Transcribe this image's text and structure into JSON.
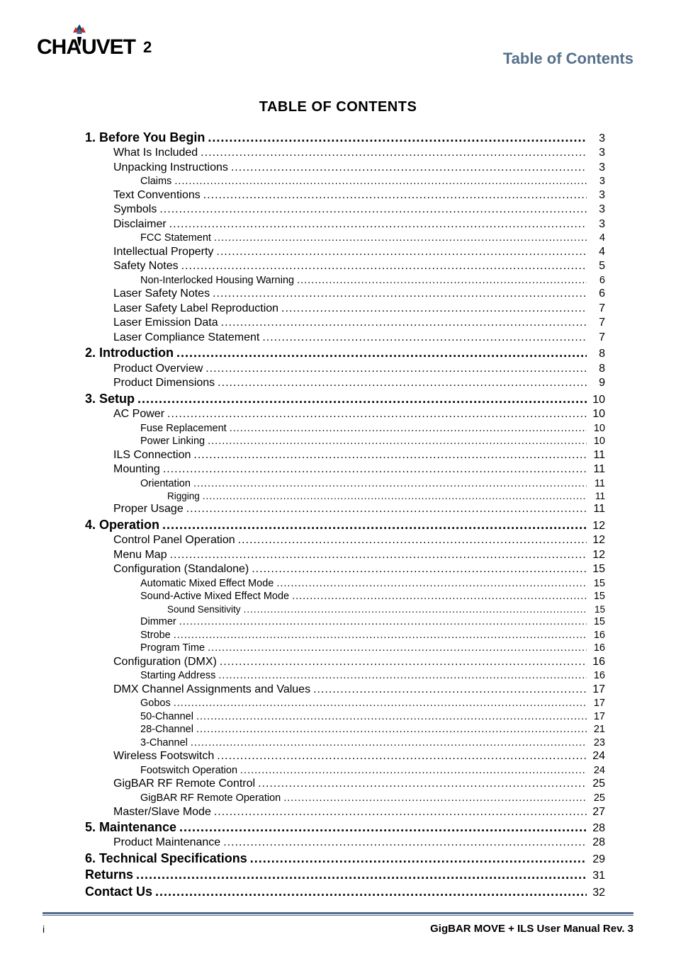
{
  "brand": "CHAUVET",
  "header_right": "Table of Contents",
  "main_title": "TABLE OF CONTENTS",
  "footer": {
    "left": "i",
    "right": "GigBAR MOVE + ILS User Manual Rev. 3"
  },
  "colors": {
    "accent": "#56708a",
    "text": "#000000",
    "bg": "#ffffff"
  },
  "toc": [
    {
      "level": 0,
      "label": "1. Before You Begin",
      "page": "3"
    },
    {
      "level": 1,
      "label": "What Is Included",
      "page": "3"
    },
    {
      "level": 1,
      "label": "Unpacking Instructions",
      "page": "3"
    },
    {
      "level": 2,
      "label": "Claims",
      "page": "3"
    },
    {
      "level": 1,
      "label": "Text Conventions",
      "page": "3"
    },
    {
      "level": 1,
      "label": "Symbols",
      "page": "3"
    },
    {
      "level": 1,
      "label": "Disclaimer",
      "page": "3"
    },
    {
      "level": 2,
      "label": "FCC Statement",
      "page": "4"
    },
    {
      "level": 1,
      "label": "Intellectual Property",
      "page": "4"
    },
    {
      "level": 1,
      "label": "Safety Notes",
      "page": "5"
    },
    {
      "level": 2,
      "label": "Non-Interlocked Housing Warning",
      "page": "6"
    },
    {
      "level": 1,
      "label": "Laser Safety Notes",
      "page": "6"
    },
    {
      "level": 1,
      "label": "Laser Safety Label Reproduction",
      "page": "7"
    },
    {
      "level": 1,
      "label": "Laser Emission Data",
      "page": "7"
    },
    {
      "level": 1,
      "label": "Laser Compliance Statement",
      "page": "7"
    },
    {
      "level": 0,
      "label": "2. Introduction",
      "page": "8"
    },
    {
      "level": 1,
      "label": "Product Overview",
      "page": "8"
    },
    {
      "level": 1,
      "label": "Product Dimensions",
      "page": "9"
    },
    {
      "level": 0,
      "label": "3. Setup",
      "page": "10"
    },
    {
      "level": 1,
      "label": "AC Power",
      "page": "10"
    },
    {
      "level": 2,
      "label": "Fuse Replacement",
      "page": "10"
    },
    {
      "level": 2,
      "label": "Power Linking",
      "page": "10"
    },
    {
      "level": 1,
      "label": "ILS Connection",
      "page": "11"
    },
    {
      "level": 1,
      "label": "Mounting",
      "page": "11"
    },
    {
      "level": 2,
      "label": "Orientation",
      "page": "11"
    },
    {
      "level": 3,
      "label": "Rigging",
      "page": "11"
    },
    {
      "level": 1,
      "label": "Proper Usage",
      "page": "11"
    },
    {
      "level": 0,
      "label": "4. Operation",
      "page": "12"
    },
    {
      "level": 1,
      "label": "Control Panel Operation",
      "page": "12"
    },
    {
      "level": 1,
      "label": "Menu Map",
      "page": "12"
    },
    {
      "level": 1,
      "label": "Configuration (Standalone)",
      "page": "15"
    },
    {
      "level": 2,
      "label": "Automatic Mixed Effect Mode",
      "page": "15"
    },
    {
      "level": 2,
      "label": "Sound-Active Mixed Effect Mode",
      "page": "15"
    },
    {
      "level": 3,
      "label": "Sound Sensitivity",
      "page": "15"
    },
    {
      "level": 2,
      "label": "Dimmer",
      "page": "15"
    },
    {
      "level": 2,
      "label": "Strobe",
      "page": "16"
    },
    {
      "level": 2,
      "label": "Program Time",
      "page": "16"
    },
    {
      "level": 1,
      "label": "Configuration (DMX)",
      "page": "16"
    },
    {
      "level": 2,
      "label": "Starting Address",
      "page": "16"
    },
    {
      "level": 1,
      "label": "DMX Channel Assignments and Values",
      "page": "17"
    },
    {
      "level": 2,
      "label": "Gobos",
      "page": "17"
    },
    {
      "level": 2,
      "label": "50-Channel",
      "page": "17"
    },
    {
      "level": 2,
      "label": "28-Channel",
      "page": "21"
    },
    {
      "level": 2,
      "label": "3-Channel",
      "page": "23"
    },
    {
      "level": 1,
      "label": "Wireless Footswitch",
      "page": "24"
    },
    {
      "level": 2,
      "label": "Footswitch Operation",
      "page": "24"
    },
    {
      "level": 1,
      "label": "GigBAR RF Remote Control",
      "page": "25"
    },
    {
      "level": 2,
      "label": "GigBAR RF Remote Operation",
      "page": "25"
    },
    {
      "level": 1,
      "label": "Master/Slave Mode",
      "page": "27"
    },
    {
      "level": 0,
      "label": "5. Maintenance",
      "page": "28"
    },
    {
      "level": 1,
      "label": "Product Maintenance",
      "page": "28"
    },
    {
      "level": 0,
      "label": "6. Technical Specifications",
      "page": "29"
    },
    {
      "level": 0,
      "label": "Returns",
      "page": "31"
    },
    {
      "level": 0,
      "label": "Contact Us",
      "page": "32"
    }
  ]
}
